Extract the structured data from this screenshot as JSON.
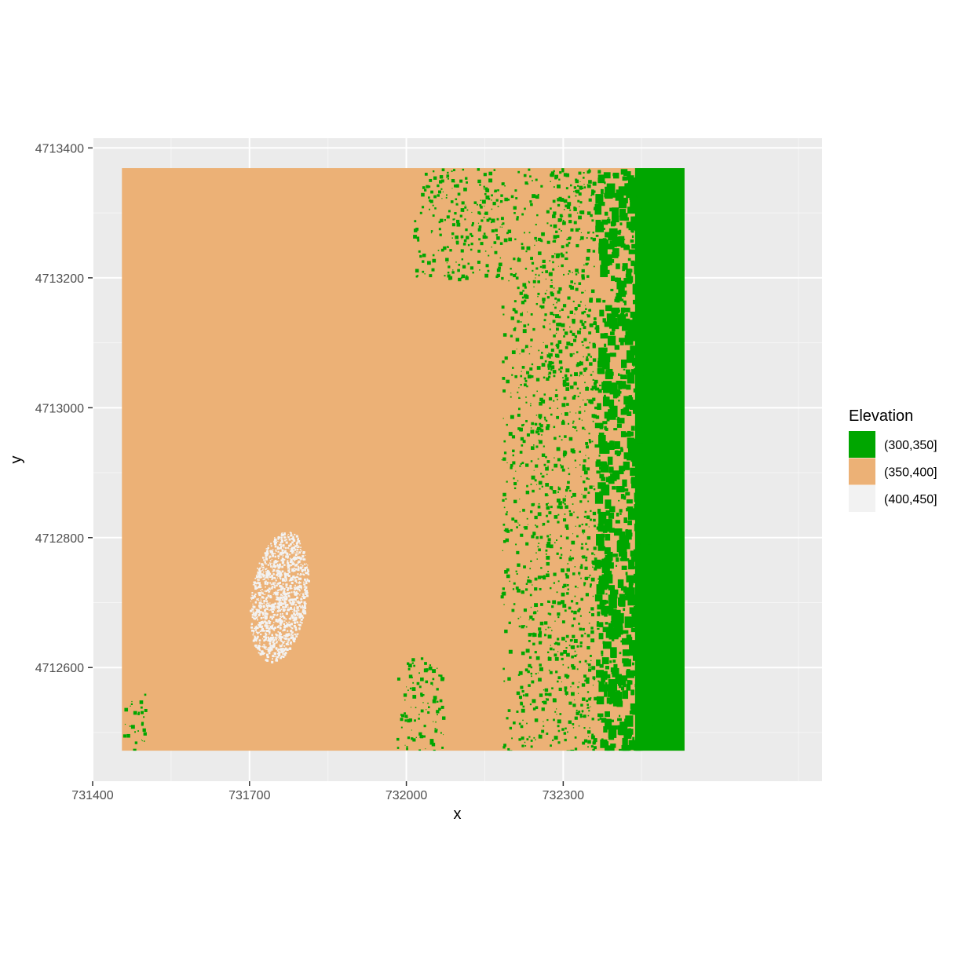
{
  "chart_data": {
    "type": "heatmap",
    "title": "",
    "xlabel": "x",
    "ylabel": "y",
    "xlim": [
      731400,
      732795
    ],
    "ylim": [
      4712425,
      4713415
    ],
    "raster_extent": {
      "x": [
        731456,
        732532
      ],
      "y": [
        4712472,
        4713369
      ]
    },
    "x_ticks": [
      731400,
      731700,
      732000,
      732300
    ],
    "x_tick_labels": [
      "731400",
      "731700",
      "732000",
      "732300"
    ],
    "y_ticks": [
      4712600,
      4712800,
      4713000,
      4713200,
      4713400
    ],
    "y_tick_labels": [
      "4712600",
      "4712800",
      "4713000",
      "4713200",
      "4713400"
    ],
    "grid": true,
    "legend": {
      "title": "Elevation",
      "position": "right",
      "entries": [
        {
          "label": "(300,350]",
          "color": "#00A600"
        },
        {
          "label": "(350,400]",
          "color": "#ECB176"
        },
        {
          "label": "(400,450]",
          "color": "#F2F2F2"
        }
      ]
    },
    "background_class": "(350,400]",
    "regions": [
      {
        "class": "(300,350]",
        "pattern": "dense",
        "x": [
          732360,
          732532
        ],
        "y": [
          4712472,
          4713369
        ],
        "description_free": true
      },
      {
        "class": "(300,350]",
        "pattern": "speckle",
        "x": [
          732180,
          732360
        ],
        "y": [
          4712472,
          4713369
        ]
      },
      {
        "class": "(300,350]",
        "pattern": "speckle",
        "x": [
          732010,
          732180
        ],
        "y": [
          4713200,
          4713369
        ]
      },
      {
        "class": "(300,350]",
        "pattern": "speckle",
        "x": [
          731980,
          732070
        ],
        "y": [
          4712472,
          4712620
        ]
      },
      {
        "class": "(300,350]",
        "pattern": "speckle",
        "x": [
          731456,
          731500
        ],
        "y": [
          4712472,
          4712560
        ]
      },
      {
        "class": "(400,450]",
        "pattern": "cluster",
        "x": [
          731690,
          731810
        ],
        "y": [
          4712610,
          4712810
        ]
      }
    ]
  }
}
